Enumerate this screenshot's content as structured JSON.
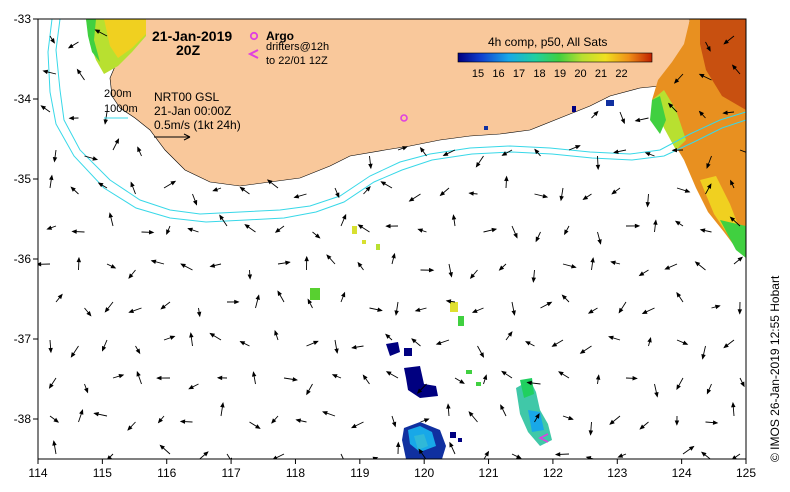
{
  "map": {
    "x_range": [
      114,
      125
    ],
    "y_range": [
      -33,
      -38.5
    ],
    "x_ticks": [
      114,
      115,
      116,
      117,
      118,
      119,
      120,
      121,
      122,
      123,
      124,
      125
    ],
    "y_ticks": [
      -33,
      -34,
      -35,
      -36,
      -37,
      -38
    ],
    "x_tick_labels": [
      "114",
      "115",
      "116",
      "117",
      "118",
      "119",
      "120",
      "121",
      "122",
      "123",
      "124",
      "125"
    ],
    "y_tick_labels": [
      "-33",
      "-34",
      "-35",
      "-36",
      "-37",
      "-38"
    ]
  },
  "header": {
    "date": "21-Jan-2019",
    "time": "20Z"
  },
  "legend": {
    "argo_label": "Argo",
    "drifter_line1": "drifters@12h",
    "drifter_line2": "to 22/01 12Z",
    "colorbar_title": "4h comp, p50, All Sats",
    "colorbar_ticks": [
      "15",
      "16",
      "17",
      "18",
      "19",
      "20",
      "21",
      "22"
    ],
    "contour_200": "200m",
    "contour_1000": "1000m",
    "gsl_line1": "NRT00 GSL",
    "gsl_line2": "21-Jan 00:00Z",
    "scale_label": "0.5m/s (1kt 24h)"
  },
  "credit": "© IMOS 26-Jan-2019 12:55 Hobart",
  "colors": {
    "land": "#f9c89b",
    "contour": "#38d8e8",
    "argo": "#e040e0",
    "frame": "#000000"
  },
  "icons": {
    "argo_marker": "circle-marker",
    "drifter_marker": "chevron-left"
  }
}
